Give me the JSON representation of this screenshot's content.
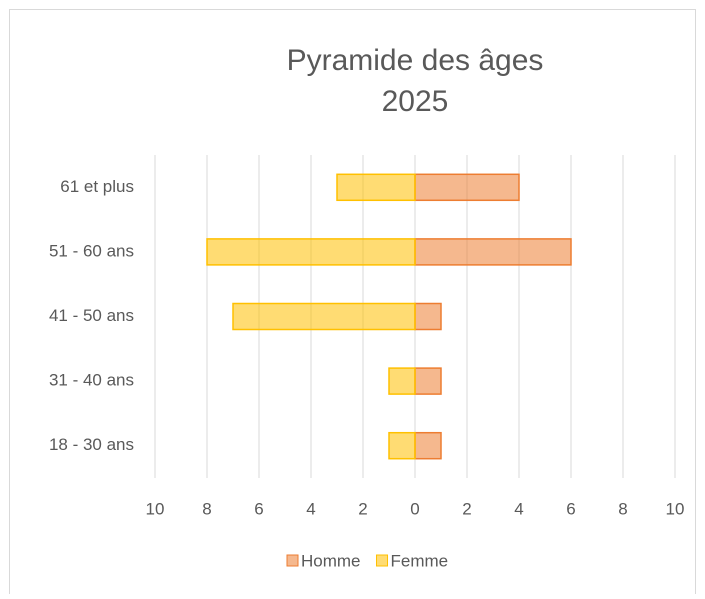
{
  "chart_data": {
    "type": "bar",
    "orientation": "horizontal",
    "title": "Pyramide des âges",
    "subtitle": "2025",
    "categories": [
      "61 et plus",
      "51 - 60 ans",
      "41 - 50 ans",
      "31 - 40 ans",
      "18 - 30 ans"
    ],
    "series": [
      {
        "name": "Homme",
        "color": "#ed7d31",
        "values": [
          4,
          6,
          1,
          1,
          1
        ]
      },
      {
        "name": "Femme",
        "color": "#ffc000",
        "values": [
          -3,
          -8,
          -7,
          -1,
          -1
        ]
      }
    ],
    "xlim": [
      -10,
      10
    ],
    "xticks": [
      {
        "value": -10,
        "label": "10"
      },
      {
        "value": -8,
        "label": "8"
      },
      {
        "value": -6,
        "label": "6"
      },
      {
        "value": -4,
        "label": "4"
      },
      {
        "value": -2,
        "label": "2"
      },
      0,
      2,
      4,
      6,
      8,
      10
    ],
    "grid": true,
    "legend": "bottom"
  }
}
